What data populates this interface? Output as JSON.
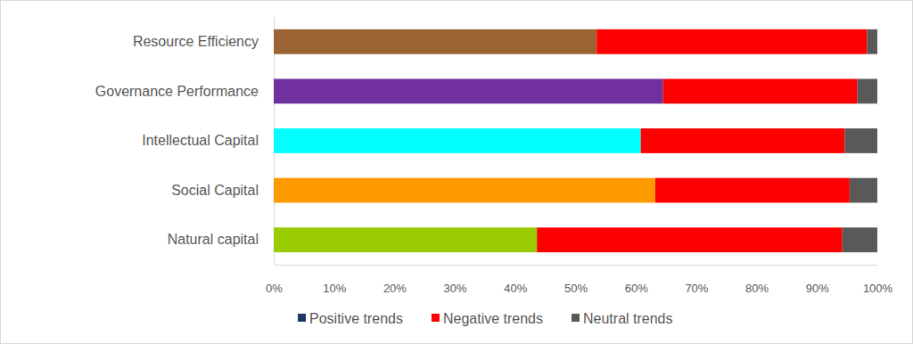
{
  "chart_data": {
    "type": "bar",
    "orientation": "horizontal",
    "stacked": true,
    "categories": [
      "Resource Efficiency",
      "Governance Performance",
      "Intellectual Capital",
      "Social Capital",
      "Natural capital"
    ],
    "series": [
      {
        "name": "Positive trends",
        "color": "#203864",
        "colors": [
          "#9a6434",
          "#7030a0",
          "#00ffff",
          "#ff9900",
          "#99cc00"
        ],
        "values": [
          53.5,
          64.5,
          60.8,
          63.2,
          43.6
        ]
      },
      {
        "name": "Negative trends",
        "color": "#ff0000",
        "values": [
          44.8,
          32.2,
          33.8,
          32.2,
          50.6
        ]
      },
      {
        "name": "Neutral trends",
        "color": "#595959",
        "values": [
          1.7,
          3.3,
          5.4,
          4.6,
          5.8
        ]
      }
    ],
    "xlim": [
      0,
      100
    ],
    "xticks": [
      {
        "value": 0,
        "label": "0%"
      },
      {
        "value": 10,
        "label": "10%"
      },
      {
        "value": 20,
        "label": "20%"
      },
      {
        "value": 30,
        "label": "30%"
      },
      {
        "value": 40,
        "label": "40%"
      },
      {
        "value": 50,
        "label": "50%"
      },
      {
        "value": 60,
        "label": "60%"
      },
      {
        "value": 70,
        "label": "70%"
      },
      {
        "value": 80,
        "label": "80%"
      },
      {
        "value": 90,
        "label": "90%"
      },
      {
        "value": 100,
        "label": "100%"
      }
    ],
    "legend": "bottom"
  }
}
